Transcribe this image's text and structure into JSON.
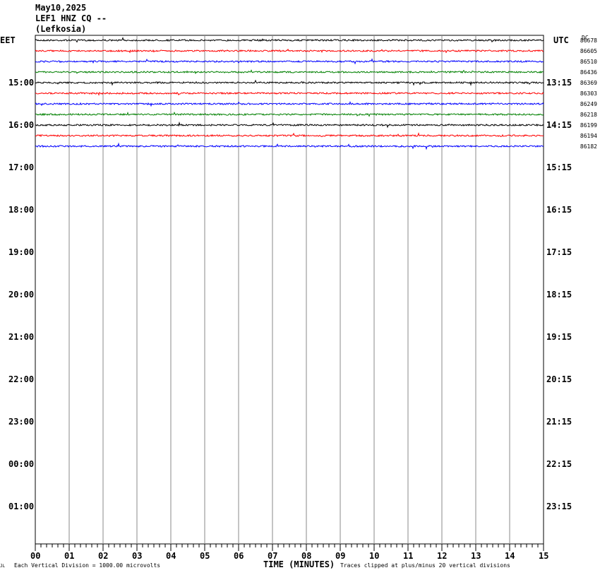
{
  "header": {
    "date": "May10,2025",
    "station": "LEF1 HNZ CQ --",
    "location": "(Lefkosia)"
  },
  "left_tz": "EET",
  "right_tz": "UTC",
  "dc_label": "DC",
  "xlabel": "TIME (MINUTES)",
  "footer_left": "Each Vertical Division = 1000.00 microvolts",
  "footer_right": "Traces clipped at plus/minus 20 vertical divisions",
  "footer_corner": "JL",
  "chart_data": {
    "type": "line",
    "xlim": [
      0,
      15
    ],
    "x_ticks": [
      "00",
      "01",
      "02",
      "03",
      "04",
      "05",
      "06",
      "07",
      "08",
      "09",
      "10",
      "11",
      "12",
      "13",
      "14",
      "15"
    ],
    "left_time_labels": [
      "15:00",
      "16:00",
      "17:00",
      "18:00",
      "19:00",
      "20:00",
      "21:00",
      "22:00",
      "23:00",
      "00:00",
      "01:00"
    ],
    "right_time_labels": [
      "13:15",
      "14:15",
      "15:15",
      "16:15",
      "17:15",
      "18:15",
      "19:15",
      "20:15",
      "21:15",
      "22:15",
      "23:15"
    ],
    "trace_colors": [
      "#000000",
      "#ff0000",
      "#0000ff",
      "#008000"
    ],
    "traces": [
      {
        "dc": "86678"
      },
      {
        "dc": "86605"
      },
      {
        "dc": "86510"
      },
      {
        "dc": "86436"
      },
      {
        "dc": "86369"
      },
      {
        "dc": "86303"
      },
      {
        "dc": "86249"
      },
      {
        "dc": "86218"
      },
      {
        "dc": "86199"
      },
      {
        "dc": "86194"
      },
      {
        "dc": "86182"
      }
    ]
  }
}
